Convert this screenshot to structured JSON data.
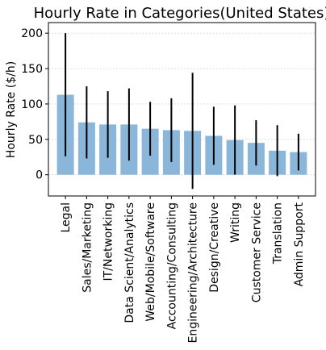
{
  "chart_data": {
    "type": "bar",
    "title": "Hourly Rate in Categories(United States)",
    "xlabel": "",
    "ylabel": "Hourly Rate ($/h)",
    "ylim": [
      -30,
      215
    ],
    "yticks": [
      0,
      50,
      100,
      150,
      200
    ],
    "grid": true,
    "bar_color": "#8ab7d9",
    "error_color": "#000000",
    "categories": [
      "Legal",
      "Sales/Marketing",
      "IT/Networking",
      "Data Scient/Analytics",
      "Web/Mobile/Software",
      "Accounting/Consulting",
      "Engineering/Architecture",
      "Design/Creative",
      "Writing",
      "Customer Service",
      "Translation",
      "Admin Support"
    ],
    "values": [
      113,
      74,
      71,
      71,
      65,
      63,
      62,
      55,
      49,
      45,
      34,
      32
    ],
    "errors": [
      87,
      51,
      47,
      51,
      38,
      45,
      82,
      41,
      49,
      32,
      36,
      26
    ]
  }
}
